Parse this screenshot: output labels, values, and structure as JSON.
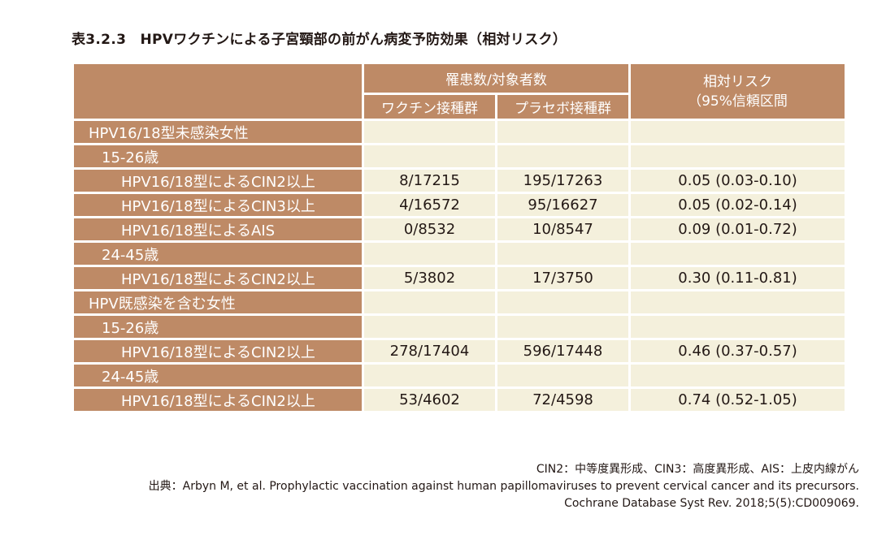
{
  "title": "表3.2.3　HPVワクチンによる子宮頸部の前がん病変予防効果（相対リスク）",
  "header": {
    "group": "罹患数/対象者数",
    "vaccine": "ワクチン接種群",
    "placebo": "プラセボ接種群",
    "rr_line1": "相対リスク",
    "rr_line2": "（95%信頼区間"
  },
  "rows": [
    {
      "label": "HPV16/18型未感染女性",
      "level": 0,
      "vaccine": "",
      "placebo": "",
      "rr": ""
    },
    {
      "label": "15-26歳",
      "level": 1,
      "vaccine": "",
      "placebo": "",
      "rr": ""
    },
    {
      "label": "HPV16/18型によるCIN2以上",
      "level": 2,
      "vaccine": "8/17215",
      "placebo": "195/17263",
      "rr": "0.05 (0.03-0.10)"
    },
    {
      "label": "HPV16/18型によるCIN3以上",
      "level": 2,
      "vaccine": "4/16572",
      "placebo": "95/16627",
      "rr": "0.05 (0.02-0.14)"
    },
    {
      "label": "HPV16/18型によるAIS",
      "level": 2,
      "vaccine": "0/8532",
      "placebo": "10/8547",
      "rr": "0.09 (0.01-0.72)"
    },
    {
      "label": "24-45歳",
      "level": 1,
      "vaccine": "",
      "placebo": "",
      "rr": ""
    },
    {
      "label": "HPV16/18型によるCIN2以上",
      "level": 2,
      "vaccine": "5/3802",
      "placebo": "17/3750",
      "rr": "0.30 (0.11-0.81)"
    },
    {
      "label": "HPV既感染を含む女性",
      "level": 0,
      "vaccine": "",
      "placebo": "",
      "rr": ""
    },
    {
      "label": "15-26歳",
      "level": 1,
      "vaccine": "",
      "placebo": "",
      "rr": ""
    },
    {
      "label": "HPV16/18型によるCIN2以上",
      "level": 2,
      "vaccine": "278/17404",
      "placebo": "596/17448",
      "rr": "0.46 (0.37-0.57)"
    },
    {
      "label": "24-45歳",
      "level": 1,
      "vaccine": "",
      "placebo": "",
      "rr": ""
    },
    {
      "label": "HPV16/18型によるCIN2以上",
      "level": 2,
      "vaccine": "53/4602",
      "placebo": "72/4598",
      "rr": "0.74 (0.52-1.05)"
    }
  ],
  "notes": {
    "abbreviations": "CIN2：中等度異形成、CIN3：高度異形成、AIS：上皮内線がん",
    "source_line1": "出典：Arbyn M, et al. Prophylactic vaccination against human papillomaviruses to prevent cervical cancer and its precursors.",
    "source_line2": "Cochrane Database Syst Rev. 2018;5(5):CD009069."
  },
  "colors": {
    "header_bg": "#be8a66",
    "value_bg": "#f4f0dc",
    "header_text": "#ffffff"
  }
}
